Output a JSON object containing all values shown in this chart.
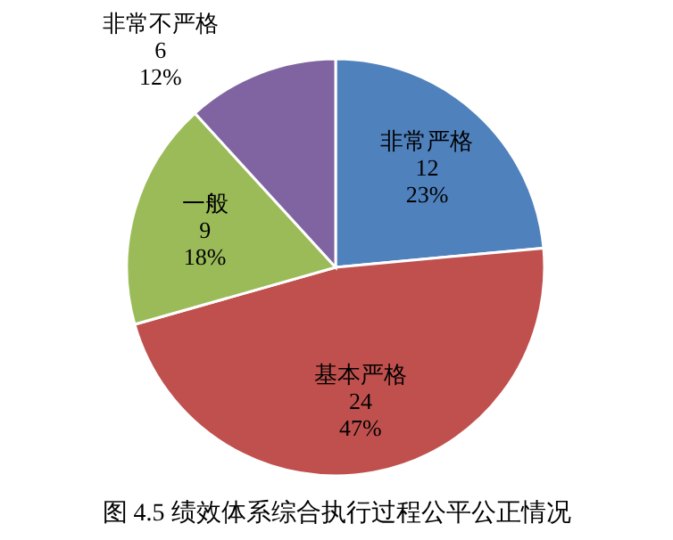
{
  "chart_data": {
    "type": "pie",
    "title": "图 4.5 绩效体系综合执行过程公平公正情况",
    "categories": [
      "非常严格",
      "基本严格",
      "一般",
      "非常不严格"
    ],
    "values": [
      12,
      24,
      9,
      6
    ],
    "colors": [
      "#4f81bd",
      "#c0504d",
      "#9bbb59",
      "#8064a2"
    ],
    "value_labels": [
      "12\n23%",
      "24\n47%",
      "9\n18%",
      "6\n12%"
    ]
  }
}
